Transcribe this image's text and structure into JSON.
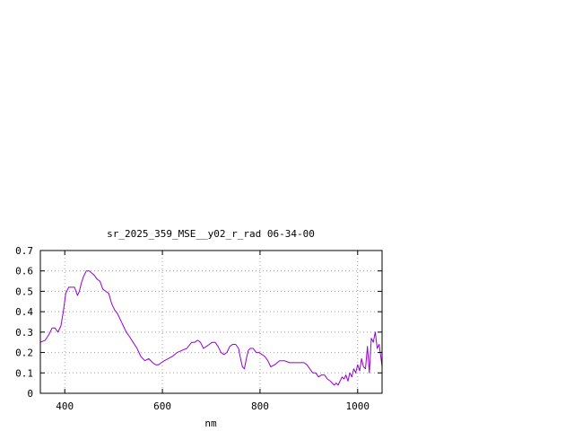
{
  "chart_data": {
    "type": "line",
    "title": "sr_2025_359_MSE__y02_r_rad 06-34-00",
    "xlabel": "nm",
    "ylabel": "",
    "xlim": [
      350,
      1050
    ],
    "ylim": [
      0,
      0.7
    ],
    "x_ticks": [
      400,
      600,
      800,
      1000
    ],
    "y_ticks": [
      0,
      0.1,
      0.2,
      0.3,
      0.4,
      0.5,
      0.6,
      0.7
    ],
    "x_tick_labels": [
      "400",
      "600",
      "800",
      "1000"
    ],
    "y_tick_labels": [
      "0",
      "0.1",
      "0.2",
      "0.3",
      "0.4",
      "0.5",
      "0.6",
      "0.7"
    ],
    "grid": true,
    "legend": "none",
    "series": [
      {
        "color": "#9400d3",
        "x": [
          350,
          360,
          368,
          374,
          380,
          386,
          392,
          397,
          402,
          408,
          414,
          420,
          426,
          430,
          434,
          438,
          444,
          450,
          455,
          460,
          466,
          472,
          478,
          484,
          490,
          496,
          502,
          508,
          514,
          520,
          526,
          532,
          540,
          548,
          556,
          564,
          572,
          580,
          586,
          592,
          598,
          604,
          612,
          620,
          630,
          640,
          650,
          660,
          666,
          672,
          678,
          684,
          690,
          696,
          702,
          708,
          714,
          720,
          726,
          732,
          738,
          744,
          750,
          756,
          760,
          764,
          768,
          772,
          776,
          780,
          786,
          792,
          798,
          804,
          810,
          816,
          822,
          830,
          840,
          850,
          860,
          870,
          880,
          890,
          896,
          902,
          908,
          914,
          920,
          926,
          932,
          938,
          944,
          948,
          952,
          956,
          960,
          964,
          968,
          972,
          976,
          980,
          984,
          988,
          992,
          996,
          1000,
          1004,
          1008,
          1012,
          1016,
          1020,
          1024,
          1028,
          1032,
          1036,
          1040,
          1044,
          1048,
          1050
        ],
        "values": [
          0.25,
          0.26,
          0.29,
          0.32,
          0.32,
          0.3,
          0.33,
          0.4,
          0.49,
          0.52,
          0.52,
          0.52,
          0.48,
          0.5,
          0.54,
          0.57,
          0.6,
          0.6,
          0.59,
          0.58,
          0.56,
          0.55,
          0.51,
          0.5,
          0.49,
          0.44,
          0.41,
          0.39,
          0.36,
          0.33,
          0.3,
          0.28,
          0.25,
          0.22,
          0.18,
          0.16,
          0.17,
          0.15,
          0.14,
          0.14,
          0.15,
          0.16,
          0.17,
          0.18,
          0.2,
          0.21,
          0.22,
          0.25,
          0.25,
          0.26,
          0.25,
          0.22,
          0.23,
          0.24,
          0.25,
          0.25,
          0.23,
          0.2,
          0.19,
          0.2,
          0.23,
          0.24,
          0.24,
          0.22,
          0.17,
          0.13,
          0.12,
          0.17,
          0.21,
          0.22,
          0.22,
          0.2,
          0.2,
          0.19,
          0.18,
          0.16,
          0.13,
          0.14,
          0.16,
          0.16,
          0.15,
          0.15,
          0.15,
          0.15,
          0.14,
          0.12,
          0.1,
          0.1,
          0.08,
          0.09,
          0.09,
          0.07,
          0.06,
          0.05,
          0.04,
          0.05,
          0.04,
          0.06,
          0.08,
          0.07,
          0.09,
          0.06,
          0.1,
          0.08,
          0.12,
          0.1,
          0.14,
          0.11,
          0.17,
          0.13,
          0.12,
          0.23,
          0.1,
          0.27,
          0.25,
          0.3,
          0.22,
          0.24,
          0.17,
          0.13
        ]
      }
    ]
  }
}
